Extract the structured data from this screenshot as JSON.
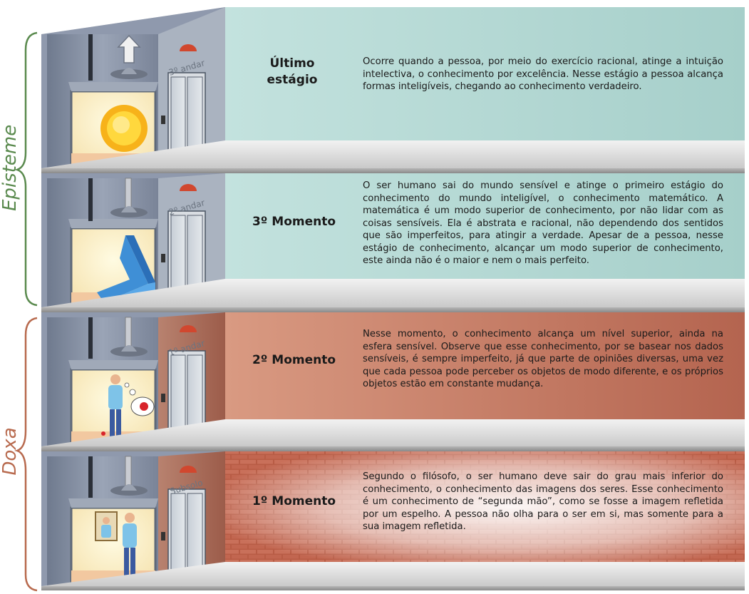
{
  "groups": {
    "episteme": {
      "label": "Episteme",
      "color": "#5a8a4e"
    },
    "doxa": {
      "label": "Doxa",
      "color": "#b86a4e"
    }
  },
  "floors": [
    {
      "floor_label": "3º andar",
      "stage": "Último estágio",
      "description": "Ocorre quando a pessoa, por meio do exercício racional, atinge a intuição intelectiva, o conhecimento por excelência. Nesse estágio a pessoa alcança formas inteligíveis, chegando ao conhecimento verdadeiro.",
      "scene": "sun-icon"
    },
    {
      "floor_label": "2º andar",
      "stage": "3º Momento",
      "description": "O ser humano sai do mundo sensível e atinge o primeiro estágio do conhecimento do mundo inteligível, o conhecimento matemático. A matemática é um modo superior de conhecimento, por não lidar com as coisas sensíveis. Ela é abstrata e racional, não dependendo dos sentidos que são imperfeitos, para atingir a verdade. Apesar de a pessoa, nesse estágio de conhecimento, alcançar um modo superior de conhecimento, este ainda não é o maior e nem o mais perfeito.",
      "scene": "impossible-triangle-icon"
    },
    {
      "floor_label": "1º andar",
      "stage": "2º Momento",
      "description": "Nesse momento, o conhecimento alcança um nível superior, ainda na esfera sensível. Observe que esse conhecimento, por se basear nos dados sensíveis, é sempre imperfeito, já que parte de opiniões diversas, uma vez que cada pessoa pode perceber os objetos de modo diferente, e os próprios objetos estão em constante mudança.",
      "scene": "person-ladybug-icon"
    },
    {
      "floor_label": "Subsolo",
      "stage": "1º Momento",
      "description": "Segundo o filósofo, o ser humano deve sair do grau mais inferior do conhecimento, o conhecimento das imagens dos seres. Esse conhecimento é um conhecimento de “segunda mão”, como se fosse a imagem refletida por um espelho. A pessoa não olha para o ser em si, mas somente para a sua imagem refletida.",
      "scene": "person-mirror-icon"
    }
  ]
}
